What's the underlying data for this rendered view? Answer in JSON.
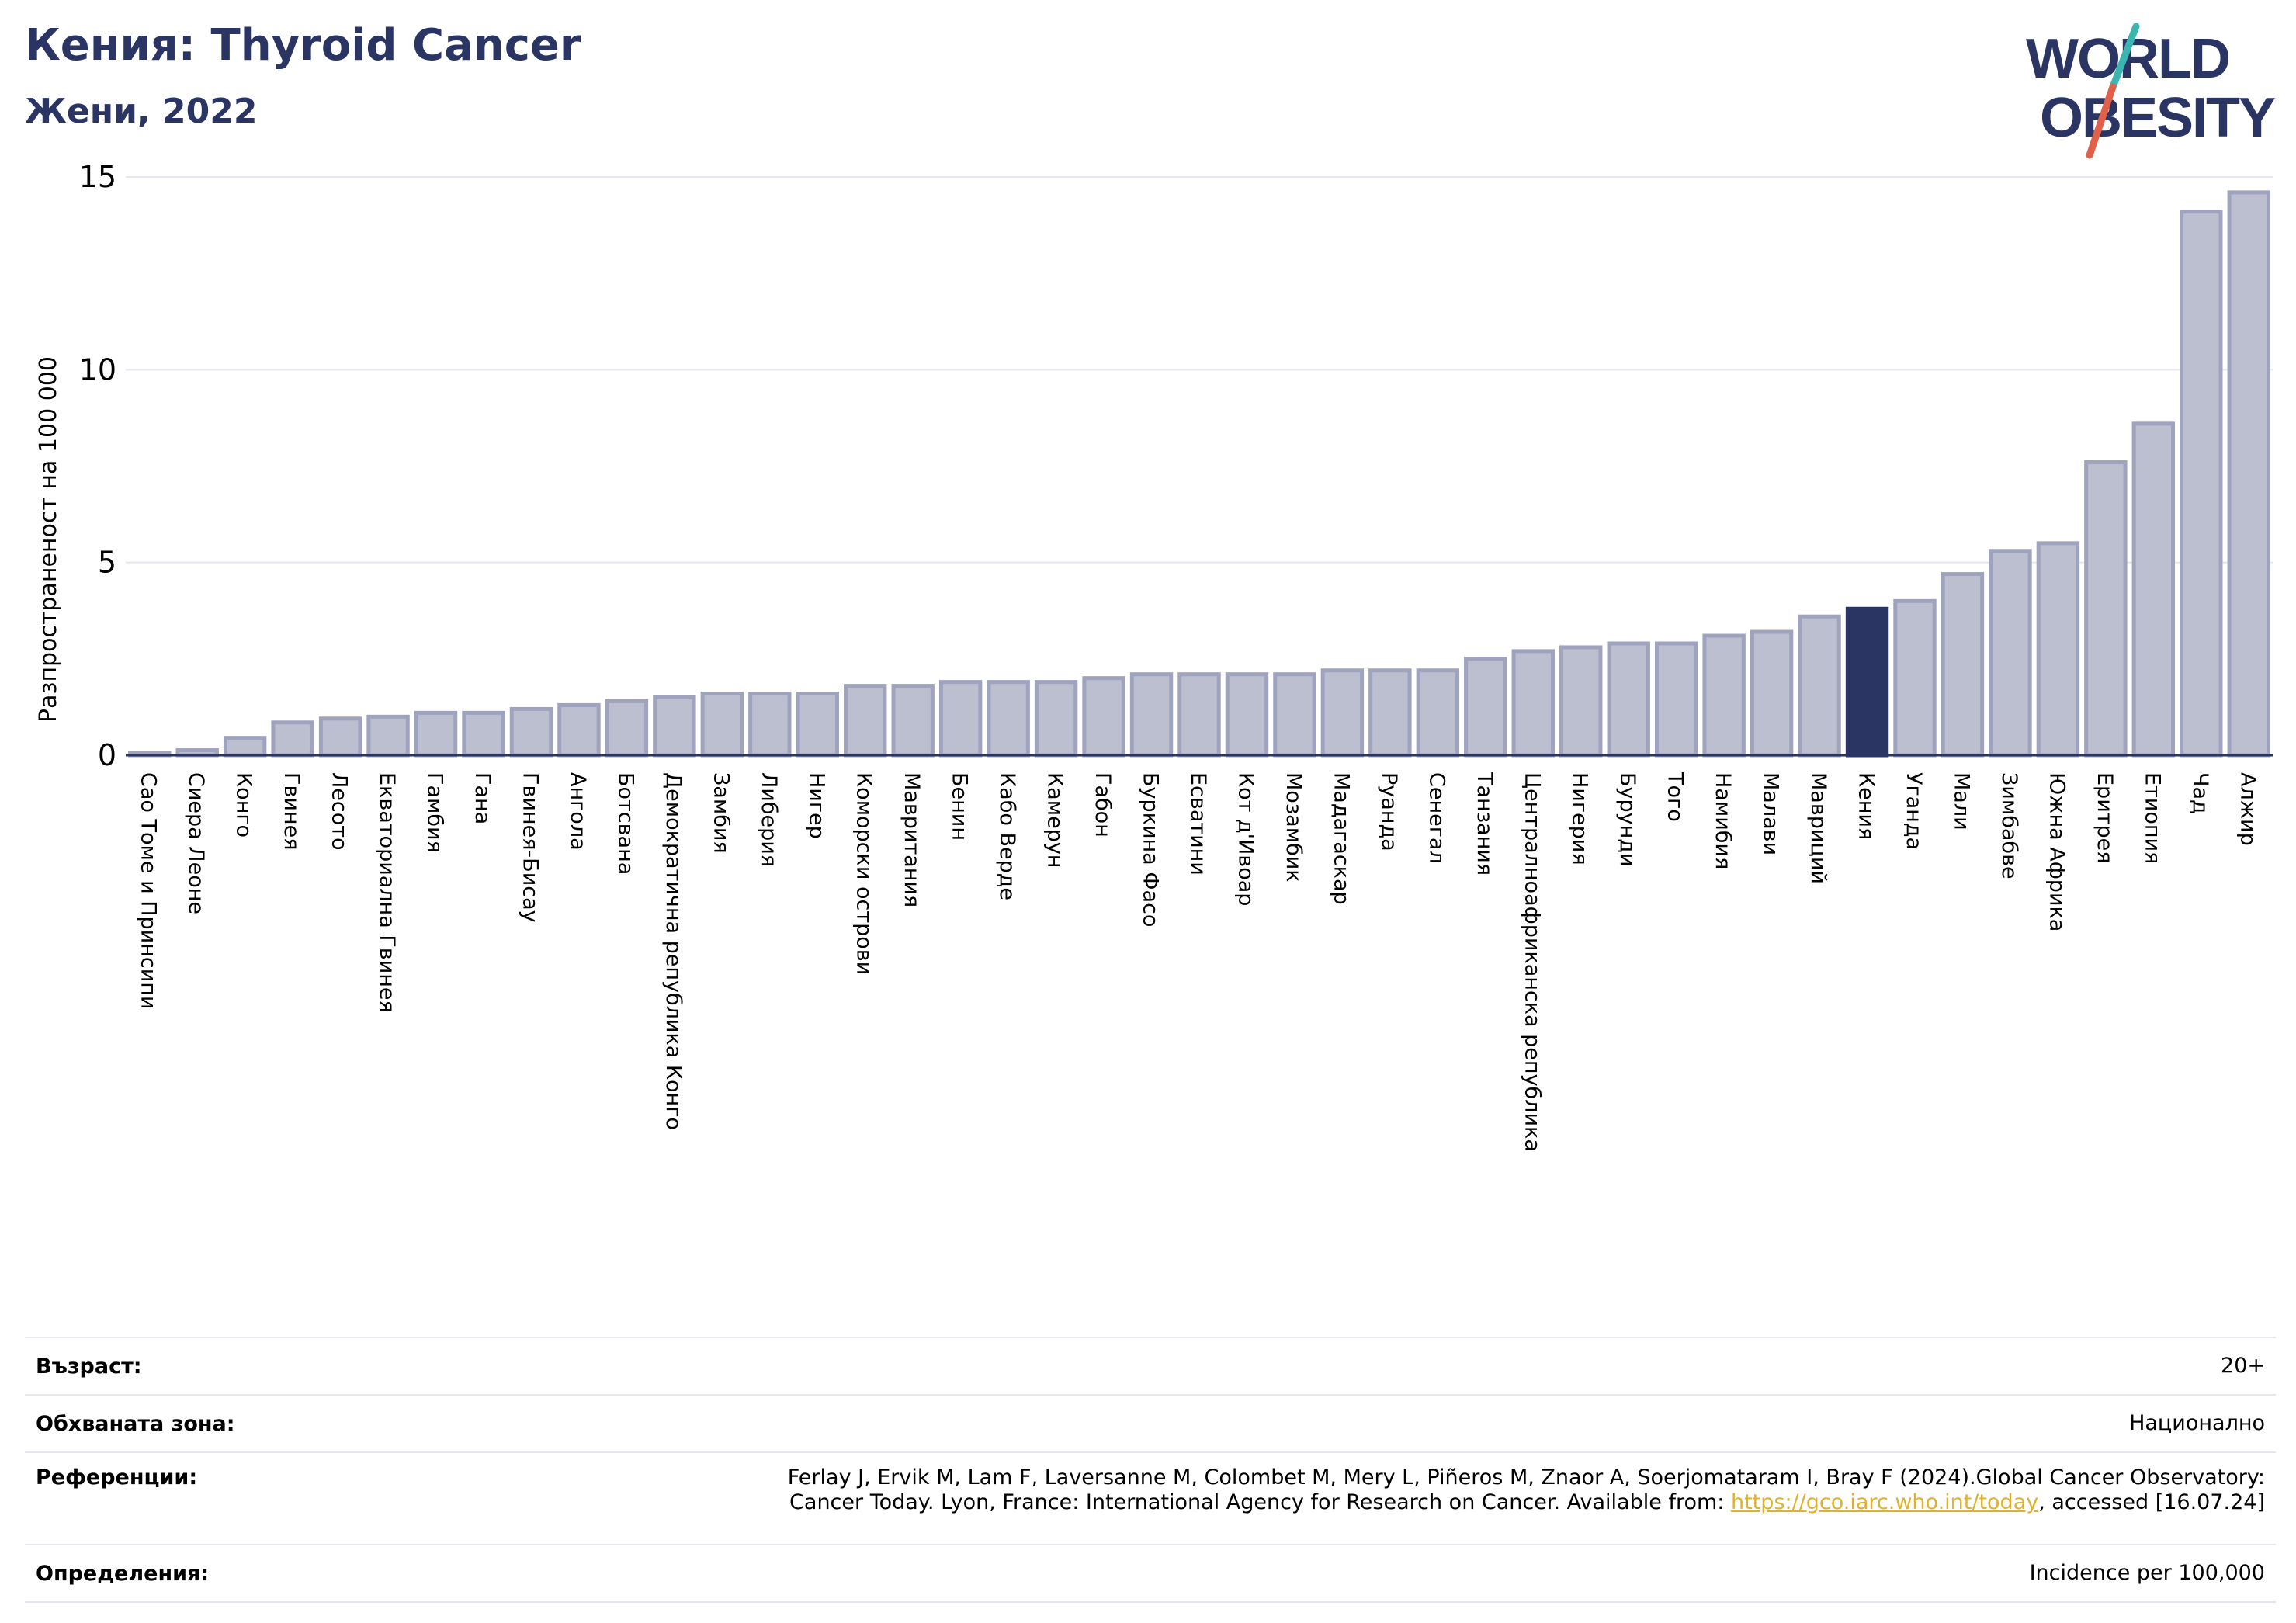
{
  "header": {
    "title": "Кения: Thyroid Cancer",
    "subtitle": "Жени, 2022"
  },
  "logo": {
    "line1": "WORLD",
    "line2": "OBESITY",
    "colors": {
      "text": "#2b3563",
      "slash_teal": "#3ab5b0",
      "slash_red": "#e0604a"
    }
  },
  "colors": {
    "bar_fill": "#bcbfd0",
    "bar_edge": "#9fa3bd",
    "highlight": "#2b3563",
    "grid": "#e5e7f0"
  },
  "chart_data": {
    "type": "bar",
    "ylabel": "Разпространеност  на 100 000",
    "ylim": [
      0,
      15
    ],
    "yticks": [
      0,
      5,
      10,
      15
    ],
    "grid": true,
    "highlight_category": "Кения",
    "categories": [
      "Сао Томе и Принсипи",
      "Сиера Леоне",
      "Конго",
      "Гвинея",
      "Лесото",
      "Екваториална Гвинея",
      "Гамбия",
      "Гана",
      "Гвинея-Бисау",
      "Ангола",
      "Ботсвана",
      "Демократична република Конго",
      "Замбия",
      "Либерия",
      "Нигер",
      "Коморски острови",
      "Мавритания",
      "Бенин",
      "Кабо Верде",
      "Камерун",
      "Габон",
      "Буркина Фасо",
      "Есватини",
      "Кот д'Ивоар",
      "Мозамбик",
      "Мадагаскар",
      "Руанда",
      "Сенегал",
      "Танзания",
      "Централноафриканска република",
      "Нигерия",
      "Бурунди",
      "Того",
      "Намибия",
      "Малави",
      "Мавриций",
      "Кения",
      "Уганда",
      "Мали",
      "Зимбабве",
      "Южна Африка",
      "Еритрея",
      "Етиопия",
      "Чад",
      "Алжир"
    ],
    "values": [
      0.05,
      0.13,
      0.45,
      0.85,
      0.95,
      1.0,
      1.1,
      1.1,
      1.2,
      1.3,
      1.4,
      1.5,
      1.6,
      1.6,
      1.6,
      1.8,
      1.8,
      1.9,
      1.9,
      1.9,
      2.0,
      2.1,
      2.1,
      2.1,
      2.1,
      2.2,
      2.2,
      2.2,
      2.5,
      2.7,
      2.8,
      2.9,
      2.9,
      3.1,
      3.2,
      3.6,
      3.8,
      4.0,
      4.7,
      5.3,
      5.5,
      7.6,
      8.6,
      14.1,
      14.6
    ]
  },
  "info": {
    "age_label": "Възраст:",
    "age_value": "20+",
    "coverage_label": "Обхваната зона:",
    "coverage_value": "Национално",
    "references_label": "Референции:",
    "references_line1": "Ferlay J, Ervik M, Lam F, Laversanne M, Colombet M, Mery L, Piñeros M, Znaor A, Soerjomataram I, Bray F (2024).Global Cancer Observatory:",
    "references_line2_pre": "Cancer Today. Lyon, France: International Agency for Research on Cancer. Available from: ",
    "references_link": "https://gco.iarc.who.int/today",
    "references_line2_post": ", accessed [16.07.24]",
    "definitions_label": "Определения:",
    "definitions_value": "Incidence per 100,000"
  }
}
